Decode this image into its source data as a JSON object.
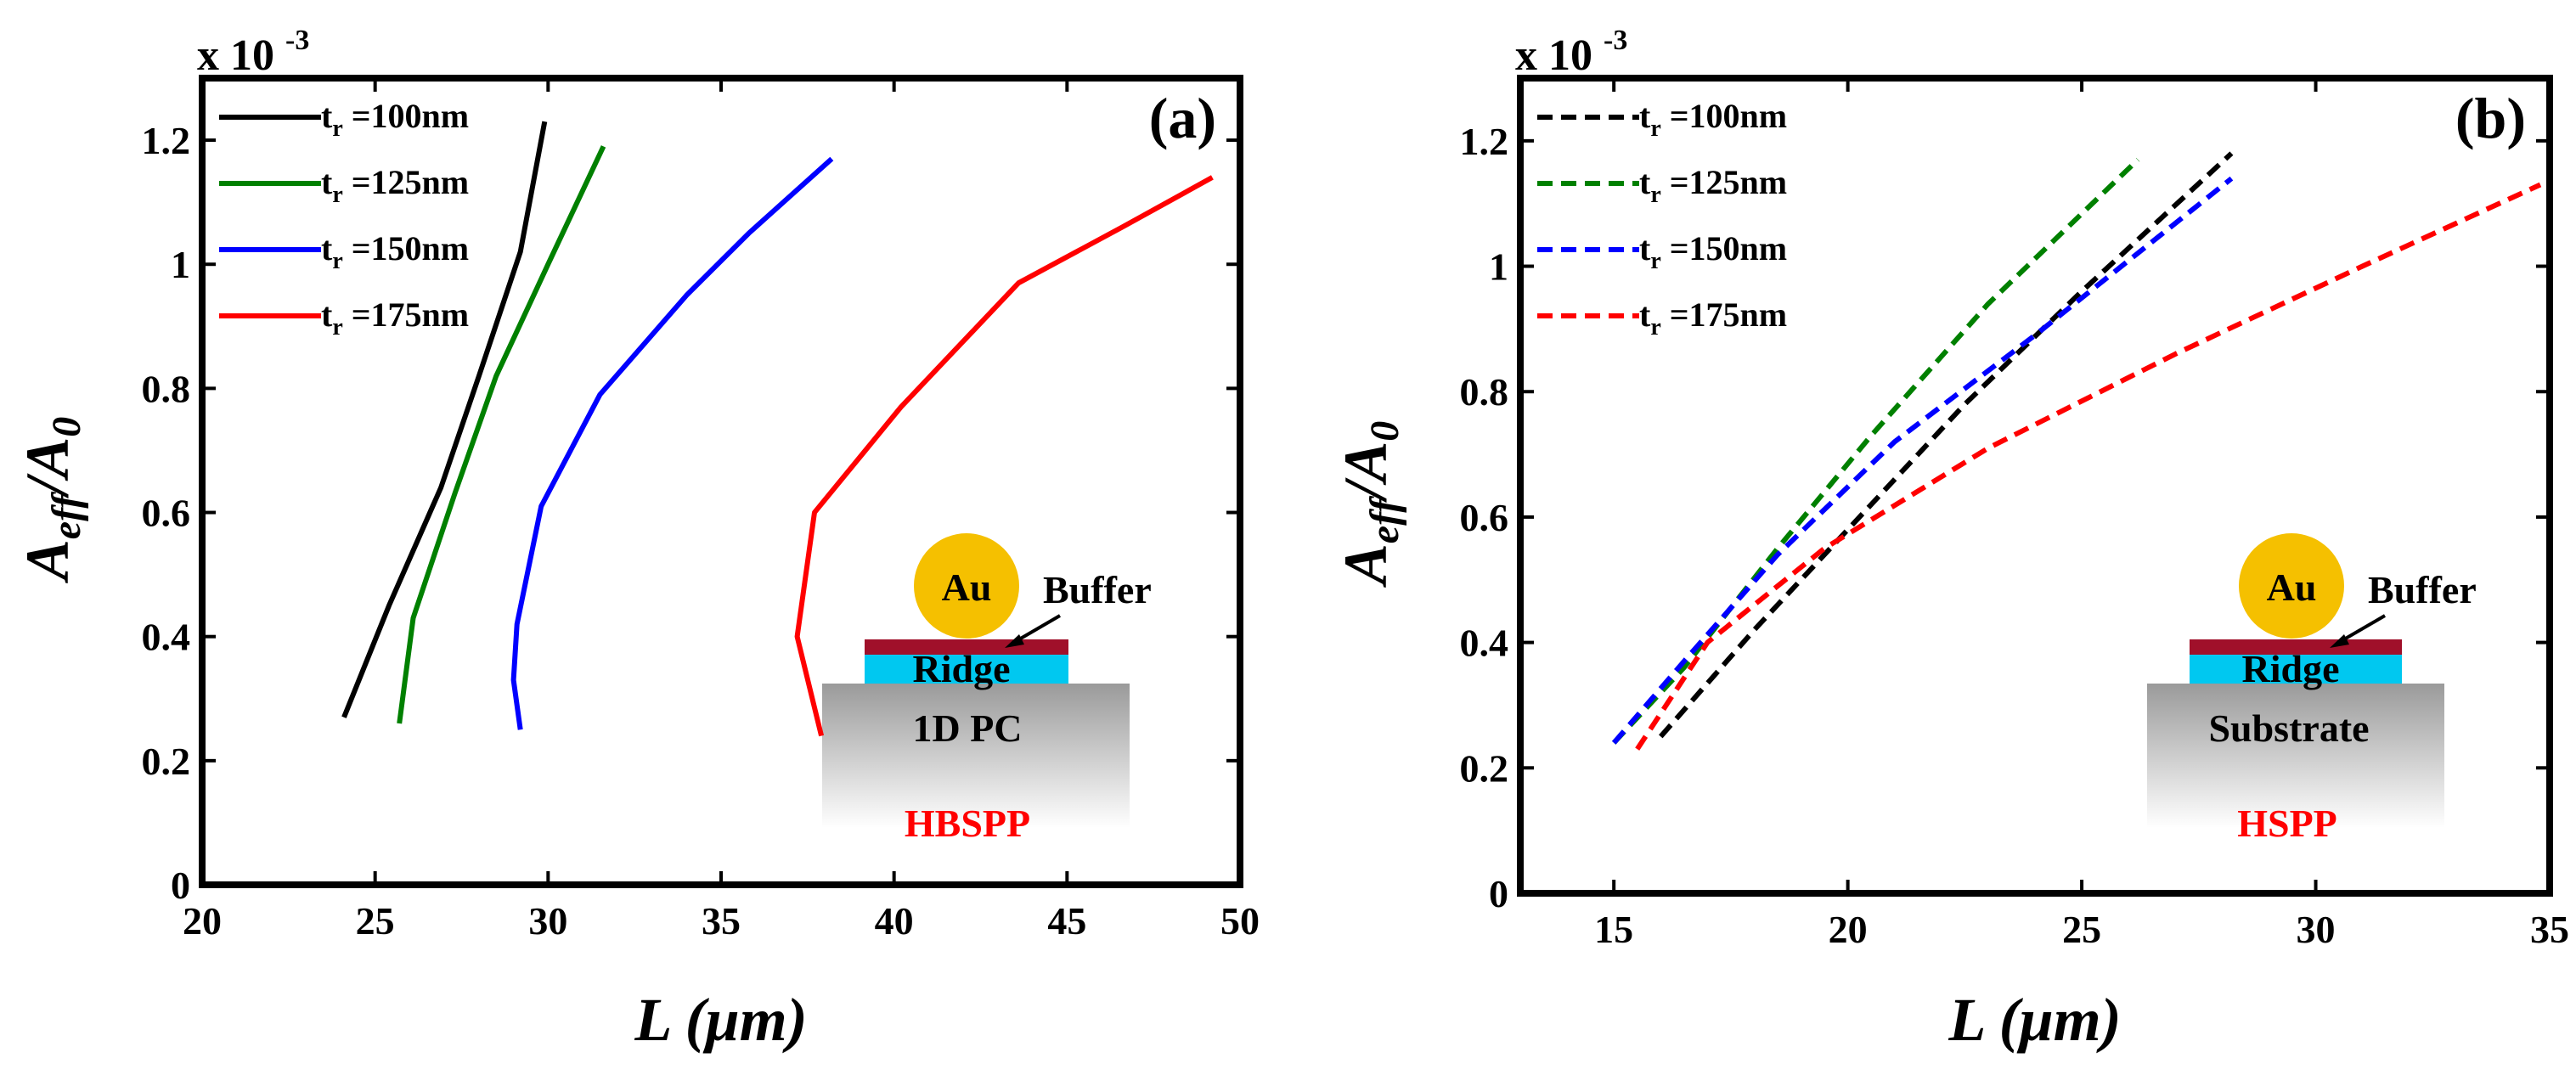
{
  "chart_data": [
    {
      "type": "line",
      "panel_label": "(a)",
      "exponent_label": "x 10",
      "exponent_power": "-3",
      "xlabel": "L (μm)",
      "ylabel_main": "A",
      "ylabel_sub1": "eff",
      "ylabel_mid": "/A",
      "ylabel_sub2": "0",
      "xlim": [
        20,
        50
      ],
      "ylim": [
        0,
        1.3
      ],
      "xticks": [
        20,
        25,
        30,
        35,
        40,
        45,
        50
      ],
      "xtick_labels": [
        "20",
        "25",
        "30",
        "35",
        "40",
        "45",
        "50"
      ],
      "yticks": [
        0,
        0.2,
        0.4,
        0.6,
        0.8,
        1,
        1.2
      ],
      "ytick_labels": [
        "0",
        "0.2",
        "0.4",
        "0.6",
        "0.8",
        "1",
        "1.2"
      ],
      "line_style": "solid",
      "legend_position": "top-left",
      "series": [
        {
          "name": "t_r=100nm",
          "prefix": "t",
          "sub": "r",
          "suffix": " =100nm",
          "color": "#000000",
          "x": [
            24.1,
            25.4,
            26.9,
            28.0,
            29.2,
            29.9
          ],
          "y": [
            0.27,
            0.45,
            0.64,
            0.82,
            1.02,
            1.23
          ]
        },
        {
          "name": "t_r=125nm",
          "prefix": "t",
          "sub": "r",
          "suffix": " =125nm",
          "color": "#008000",
          "x": [
            25.7,
            26.1,
            27.3,
            28.5,
            30.0,
            31.6
          ],
          "y": [
            0.26,
            0.43,
            0.63,
            0.82,
            1.0,
            1.19
          ]
        },
        {
          "name": "t_r=150nm",
          "prefix": "t",
          "sub": "r",
          "suffix": " =150nm",
          "color": "#0000ff",
          "x": [
            29.2,
            29.0,
            29.1,
            29.8,
            31.5,
            34.0,
            35.8,
            38.2
          ],
          "y": [
            0.25,
            0.33,
            0.42,
            0.61,
            0.79,
            0.95,
            1.05,
            1.17
          ]
        },
        {
          "name": "t_r=175nm",
          "prefix": "t",
          "sub": "r",
          "suffix": " =175nm",
          "color": "#ff0000",
          "x": [
            37.9,
            37.2,
            37.7,
            40.2,
            43.6,
            46.6,
            49.2
          ],
          "y": [
            0.24,
            0.4,
            0.6,
            0.77,
            0.97,
            1.06,
            1.14
          ]
        }
      ],
      "inset": {
        "metal": "Au",
        "buffer": "Buffer",
        "ridge": "Ridge",
        "substrate": "1D PC",
        "mode": "HBSPP"
      }
    },
    {
      "type": "line",
      "panel_label": "(b)",
      "exponent_label": "x 10",
      "exponent_power": "-3",
      "xlabel": "L (μm)",
      "ylabel_main": "A",
      "ylabel_sub1": "eff",
      "ylabel_mid": "/A",
      "ylabel_sub2": "0",
      "xlim": [
        13,
        35
      ],
      "ylim": [
        0,
        1.3
      ],
      "xticks": [
        15,
        20,
        25,
        30,
        35
      ],
      "xtick_labels": [
        "15",
        "20",
        "25",
        "30",
        "35"
      ],
      "yticks": [
        0,
        0.2,
        0.4,
        0.6,
        0.8,
        1,
        1.2
      ],
      "ytick_labels": [
        "0",
        "0.2",
        "0.4",
        "0.6",
        "0.8",
        "1",
        "1.2"
      ],
      "line_style": "dashed",
      "legend_position": "top-left",
      "series": [
        {
          "name": "t_r=100nm",
          "prefix": "t",
          "sub": "r",
          "suffix": " =100nm",
          "color": "#000000",
          "x": [
            16.0,
            18.0,
            20.0,
            22.5,
            25.0,
            28.2
          ],
          "y": [
            0.25,
            0.42,
            0.58,
            0.78,
            0.96,
            1.18
          ]
        },
        {
          "name": "t_r=125nm",
          "prefix": "t",
          "sub": "r",
          "suffix": " =125nm",
          "color": "#008000",
          "x": [
            15.0,
            16.5,
            18.5,
            20.5,
            23.0,
            26.2
          ],
          "y": [
            0.24,
            0.36,
            0.55,
            0.73,
            0.94,
            1.17
          ]
        },
        {
          "name": "t_r=150nm",
          "prefix": "t",
          "sub": "r",
          "suffix": " =150nm",
          "color": "#0000ff",
          "x": [
            15.0,
            16.5,
            18.5,
            21.0,
            24.0,
            28.2
          ],
          "y": [
            0.24,
            0.37,
            0.54,
            0.72,
            0.89,
            1.14
          ]
        },
        {
          "name": "t_r=175nm",
          "prefix": "t",
          "sub": "r",
          "suffix": " =175nm",
          "color": "#ff0000",
          "x": [
            15.5,
            17.0,
            19.5,
            23.0,
            27.0,
            31.0,
            34.8
          ],
          "y": [
            0.23,
            0.4,
            0.55,
            0.71,
            0.86,
            1.0,
            1.13
          ]
        }
      ],
      "inset": {
        "metal": "Au",
        "buffer": "Buffer",
        "ridge": "Ridge",
        "substrate": "Substrate",
        "mode": "HSPP"
      }
    }
  ]
}
